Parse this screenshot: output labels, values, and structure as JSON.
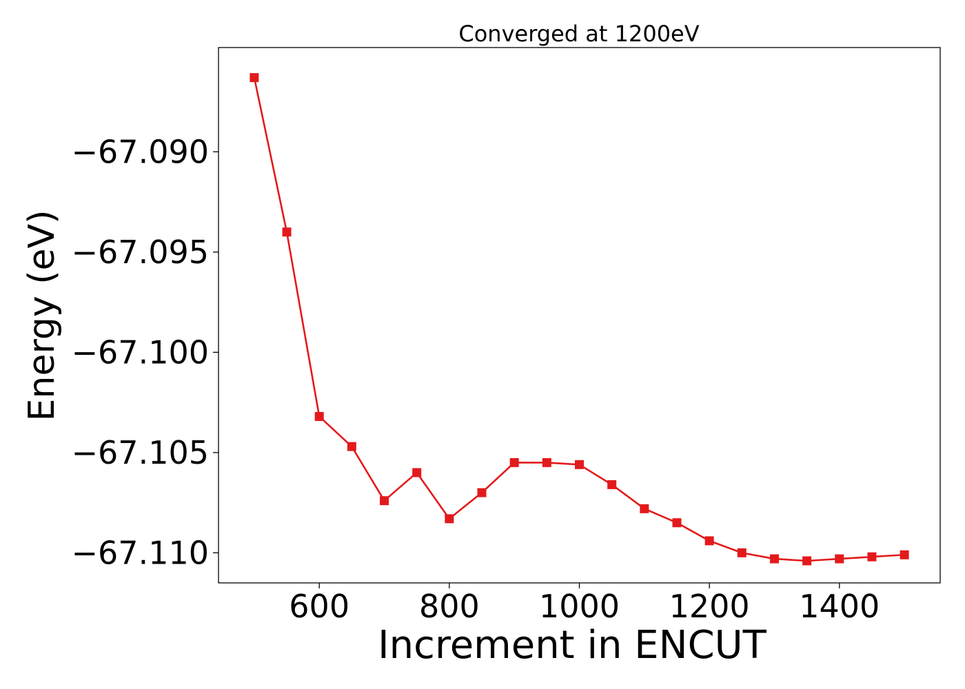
{
  "chart_data": {
    "type": "line",
    "title": "Converged at 1200eV",
    "xlabel": "Increment in ENCUT",
    "ylabel": "Energy (eV)",
    "xlim": [
      445,
      1555
    ],
    "ylim": [
      -67.1115,
      -67.0848
    ],
    "x_ticks": [
      600,
      800,
      1000,
      1200,
      1400
    ],
    "y_ticks": [
      -67.09,
      -67.095,
      -67.1,
      -67.105,
      -67.11
    ],
    "x_tick_labels": [
      "600",
      "800",
      "1000",
      "1200",
      "1400"
    ],
    "y_tick_labels": [
      "−67.090",
      "−67.095",
      "−67.100",
      "−67.105",
      "−67.110"
    ],
    "grid": false,
    "series": [
      {
        "color": "#e31a1c",
        "marker": "square",
        "x": [
          500,
          550,
          600,
          650,
          700,
          750,
          800,
          850,
          900,
          950,
          1000,
          1050,
          1100,
          1150,
          1200,
          1250,
          1300,
          1350,
          1400,
          1450,
          1500
        ],
        "values": [
          -67.0863,
          -67.094,
          -67.1032,
          -67.1047,
          -67.1074,
          -67.106,
          -67.1083,
          -67.107,
          -67.1055,
          -67.1055,
          -67.1056,
          -67.1066,
          -67.1078,
          -67.1085,
          -67.1094,
          -67.11,
          -67.1103,
          -67.1104,
          -67.1103,
          -67.1102,
          -67.1101
        ]
      }
    ]
  }
}
